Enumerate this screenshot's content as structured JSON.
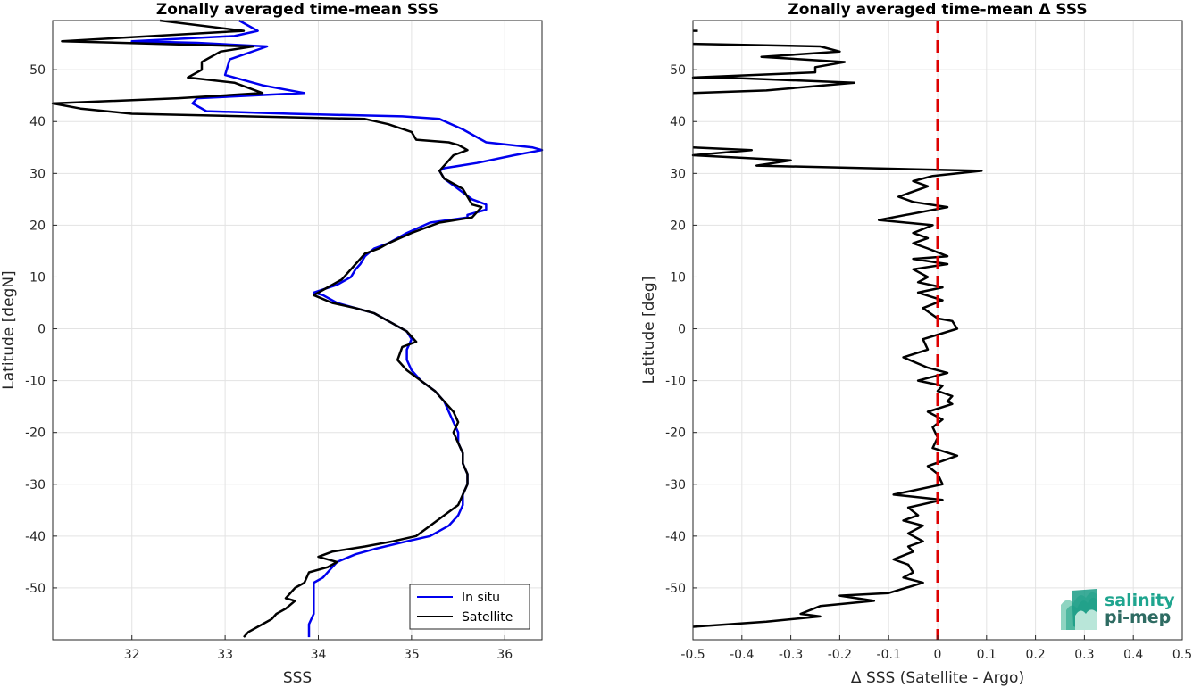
{
  "chart_data": [
    {
      "type": "line",
      "title": "Zonally averaged time-mean SSS",
      "xlabel": "SSS",
      "ylabel": "Latitude [degN]",
      "xlim": [
        31.15,
        36.4
      ],
      "ylim": [
        -60,
        59.5
      ],
      "grid": true,
      "xticks": [
        "32",
        "33",
        "34",
        "35",
        "36"
      ],
      "yticks": [
        "50",
        "40",
        "30",
        "20",
        "10",
        "0",
        "-10",
        "-20",
        "-30",
        "-40",
        "-50"
      ],
      "legend": {
        "placement": "bottom-right",
        "entries": [
          "In situ",
          "Satellite"
        ]
      },
      "series": [
        {
          "name": "In situ",
          "color": "#0000ee",
          "points": [
            [
              33.15,
              59.5
            ],
            [
              33.35,
              57.5
            ],
            [
              33.1,
              56.5
            ],
            [
              32.0,
              55.5
            ],
            [
              32.7,
              55.2
            ],
            [
              33.45,
              54.5
            ],
            [
              33.05,
              52
            ],
            [
              33.0,
              49
            ],
            [
              33.4,
              47
            ],
            [
              33.85,
              45.5
            ],
            [
              32.7,
              44.5
            ],
            [
              32.65,
              43.5
            ],
            [
              32.8,
              42
            ],
            [
              33.7,
              41.5
            ],
            [
              34.9,
              41
            ],
            [
              35.3,
              40.5
            ],
            [
              35.55,
              38.5
            ],
            [
              35.8,
              36
            ],
            [
              36.3,
              35
            ],
            [
              36.4,
              34.5
            ],
            [
              36.1,
              33.5
            ],
            [
              35.7,
              32
            ],
            [
              35.35,
              31
            ],
            [
              35.3,
              30.5
            ],
            [
              35.35,
              29
            ],
            [
              35.5,
              27
            ],
            [
              35.65,
              25
            ],
            [
              35.8,
              24
            ],
            [
              35.8,
              23
            ],
            [
              35.6,
              22
            ],
            [
              35.6,
              21.5
            ],
            [
              35.2,
              20.5
            ],
            [
              34.95,
              18.5
            ],
            [
              34.75,
              16.5
            ],
            [
              34.6,
              15.5
            ],
            [
              34.5,
              14
            ],
            [
              34.45,
              12.5
            ],
            [
              34.4,
              11.5
            ],
            [
              34.35,
              10
            ],
            [
              34.2,
              8.5
            ],
            [
              33.95,
              7
            ],
            [
              34.05,
              6.5
            ],
            [
              34.2,
              5
            ],
            [
              34.4,
              4
            ],
            [
              34.6,
              3
            ],
            [
              34.8,
              1
            ],
            [
              34.95,
              -0.5
            ],
            [
              35.0,
              -2
            ],
            [
              34.95,
              -4
            ],
            [
              34.95,
              -6
            ],
            [
              35.0,
              -8
            ],
            [
              35.1,
              -10
            ],
            [
              35.25,
              -12
            ],
            [
              35.35,
              -14
            ],
            [
              35.4,
              -16
            ],
            [
              35.45,
              -18
            ],
            [
              35.5,
              -20
            ],
            [
              35.5,
              -22
            ],
            [
              35.55,
              -24
            ],
            [
              35.55,
              -26
            ],
            [
              35.6,
              -28
            ],
            [
              35.6,
              -30
            ],
            [
              35.55,
              -32
            ],
            [
              35.55,
              -34
            ],
            [
              35.5,
              -36
            ],
            [
              35.4,
              -38
            ],
            [
              35.2,
              -40
            ],
            [
              34.95,
              -41
            ],
            [
              34.6,
              -42.5
            ],
            [
              34.4,
              -43.5
            ],
            [
              34.2,
              -45
            ],
            [
              34.15,
              -46
            ],
            [
              34.05,
              -48
            ],
            [
              33.95,
              -49
            ],
            [
              33.95,
              -51
            ],
            [
              33.95,
              -53
            ],
            [
              33.95,
              -55
            ],
            [
              33.9,
              -57
            ],
            [
              33.9,
              -59.5
            ]
          ]
        },
        {
          "name": "Satellite",
          "color": "#000000",
          "points": [
            [
              32.3,
              59.5
            ],
            [
              33.2,
              57.5
            ],
            [
              31.25,
              55.5
            ],
            [
              33.3,
              54.5
            ],
            [
              32.95,
              53.5
            ],
            [
              32.75,
              51.5
            ],
            [
              32.75,
              50
            ],
            [
              32.6,
              48.5
            ],
            [
              33.1,
              47.5
            ],
            [
              33.4,
              45.5
            ],
            [
              32.5,
              44.5
            ],
            [
              31.15,
              43.5
            ],
            [
              31.45,
              42.5
            ],
            [
              32.0,
              41.5
            ],
            [
              34.5,
              40.5
            ],
            [
              34.75,
              39.5
            ],
            [
              35.0,
              38
            ],
            [
              35.05,
              36.5
            ],
            [
              35.4,
              36
            ],
            [
              35.5,
              35.5
            ],
            [
              35.6,
              34.5
            ],
            [
              35.45,
              33.5
            ],
            [
              35.4,
              32.5
            ],
            [
              35.3,
              30.5
            ],
            [
              35.35,
              29
            ],
            [
              35.55,
              27
            ],
            [
              35.65,
              24
            ],
            [
              35.75,
              23.5
            ],
            [
              35.65,
              21.5
            ],
            [
              35.3,
              20.5
            ],
            [
              35.0,
              18.5
            ],
            [
              34.75,
              16.5
            ],
            [
              34.65,
              15.5
            ],
            [
              34.5,
              14.5
            ],
            [
              34.4,
              12.5
            ],
            [
              34.35,
              11.5
            ],
            [
              34.25,
              9.5
            ],
            [
              34.1,
              8
            ],
            [
              33.95,
              6.5
            ],
            [
              34.15,
              5
            ],
            [
              34.4,
              4
            ],
            [
              34.6,
              3
            ],
            [
              34.8,
              1
            ],
            [
              34.95,
              -0.5
            ],
            [
              35.05,
              -2.5
            ],
            [
              34.9,
              -3.5
            ],
            [
              34.85,
              -6
            ],
            [
              34.95,
              -8
            ],
            [
              35.1,
              -10
            ],
            [
              35.25,
              -12
            ],
            [
              35.35,
              -14
            ],
            [
              35.45,
              -16
            ],
            [
              35.5,
              -18
            ],
            [
              35.45,
              -20
            ],
            [
              35.5,
              -22
            ],
            [
              35.55,
              -24
            ],
            [
              35.55,
              -26
            ],
            [
              35.6,
              -28
            ],
            [
              35.6,
              -30
            ],
            [
              35.55,
              -32
            ],
            [
              35.5,
              -34
            ],
            [
              35.35,
              -36
            ],
            [
              35.2,
              -38
            ],
            [
              35.05,
              -40
            ],
            [
              34.8,
              -41
            ],
            [
              34.5,
              -42
            ],
            [
              34.15,
              -43
            ],
            [
              34.0,
              -44
            ],
            [
              34.2,
              -45
            ],
            [
              34.1,
              -46
            ],
            [
              33.9,
              -47
            ],
            [
              33.85,
              -49
            ],
            [
              33.75,
              -50
            ],
            [
              33.65,
              -52
            ],
            [
              33.75,
              -52.5
            ],
            [
              33.65,
              -54
            ],
            [
              33.55,
              -55
            ],
            [
              33.5,
              -56
            ],
            [
              33.4,
              -57
            ],
            [
              33.25,
              -58.5
            ],
            [
              33.2,
              -59.5
            ]
          ]
        }
      ]
    },
    {
      "type": "line",
      "title": "Zonally averaged time-mean Δ SSS",
      "xlabel": "Δ SSS (Satellite - Argo)",
      "ylabel": "Latitude [deg]",
      "xlim": [
        -0.5,
        0.5
      ],
      "ylim": [
        -60,
        59.5
      ],
      "grid": true,
      "xticks": [
        "-0.5",
        "-0.4",
        "-0.3",
        "-0.2",
        "-0.1",
        "0",
        "0.1",
        "0.2",
        "0.3",
        "0.4",
        "0.5"
      ],
      "yticks": [
        "50",
        "40",
        "30",
        "20",
        "10",
        "0",
        "-10",
        "-20",
        "-30",
        "-40",
        "-50"
      ],
      "reference_line": {
        "x": 0,
        "color": "#dd0000",
        "style": "dashed"
      },
      "series": [
        {
          "name": "",
          "color": "#000000",
          "segments": [
            [
              [
                -0.5,
                57.5
              ],
              [
                -0.49,
                57.5
              ]
            ],
            [
              [
                -0.5,
                55
              ],
              [
                -0.24,
                54.5
              ],
              [
                -0.2,
                53.5
              ],
              [
                -0.36,
                52.5
              ],
              [
                -0.19,
                51.5
              ],
              [
                -0.25,
                50.5
              ],
              [
                -0.25,
                49.5
              ],
              [
                -0.5,
                48.5
              ],
              [
                -0.44,
                48.5
              ],
              [
                -0.17,
                47.5
              ],
              [
                -0.35,
                46
              ],
              [
                -0.5,
                45.5
              ]
            ],
            [
              [
                -0.5,
                35
              ],
              [
                -0.38,
                34.5
              ],
              [
                -0.5,
                33.5
              ],
              [
                -0.3,
                32.5
              ],
              [
                -0.37,
                31.5
              ],
              [
                0.09,
                30.5
              ],
              [
                -0.01,
                29.5
              ],
              [
                -0.05,
                28.5
              ],
              [
                -0.02,
                27.5
              ],
              [
                -0.08,
                25.5
              ],
              [
                -0.05,
                24.5
              ],
              [
                0.02,
                23.5
              ],
              [
                -0.12,
                21
              ],
              [
                -0.01,
                20
              ],
              [
                -0.05,
                18.5
              ],
              [
                -0.02,
                17.5
              ],
              [
                -0.05,
                16.5
              ],
              [
                -0.02,
                15.5
              ],
              [
                0.02,
                14
              ],
              [
                -0.05,
                13.5
              ],
              [
                0.02,
                12.5
              ],
              [
                -0.05,
                11.5
              ],
              [
                -0.02,
                10
              ],
              [
                -0.04,
                9
              ],
              [
                0.01,
                8
              ],
              [
                -0.04,
                7
              ],
              [
                0.01,
                5.5
              ],
              [
                -0.03,
                4
              ],
              [
                0.0,
                2
              ],
              [
                0.03,
                1.5
              ],
              [
                0.04,
                0
              ],
              [
                -0.03,
                -2
              ],
              [
                -0.02,
                -4
              ],
              [
                -0.07,
                -5.5
              ],
              [
                -0.02,
                -7.5
              ],
              [
                0.02,
                -8.5
              ],
              [
                -0.04,
                -10
              ],
              [
                0.01,
                -11
              ],
              [
                0.0,
                -12
              ],
              [
                0.03,
                -13
              ],
              [
                0.02,
                -14
              ],
              [
                0.03,
                -14.5
              ],
              [
                -0.02,
                -16
              ],
              [
                0.01,
                -17.5
              ],
              [
                -0.01,
                -19
              ],
              [
                0.0,
                -21
              ],
              [
                -0.01,
                -23
              ],
              [
                0.04,
                -24.5
              ],
              [
                -0.02,
                -26.5
              ],
              [
                0.0,
                -28
              ],
              [
                0.01,
                -30
              ],
              [
                -0.09,
                -32
              ],
              [
                0.01,
                -33
              ],
              [
                -0.06,
                -34.5
              ],
              [
                -0.04,
                -36
              ],
              [
                -0.07,
                -37
              ],
              [
                -0.03,
                -38
              ],
              [
                -0.06,
                -39.5
              ],
              [
                -0.03,
                -41
              ],
              [
                -0.06,
                -42
              ],
              [
                -0.05,
                -43
              ],
              [
                -0.09,
                -44.5
              ],
              [
                -0.06,
                -45.5
              ],
              [
                -0.05,
                -47
              ],
              [
                -0.07,
                -48
              ],
              [
                -0.03,
                -49
              ],
              [
                -0.1,
                -51
              ],
              [
                -0.2,
                -51.5
              ],
              [
                -0.13,
                -52.5
              ],
              [
                -0.24,
                -53.5
              ],
              [
                -0.28,
                -55
              ],
              [
                -0.24,
                -55.5
              ],
              [
                -0.35,
                -56.5
              ],
              [
                -0.5,
                -57.5
              ]
            ]
          ]
        }
      ]
    }
  ],
  "logo": {
    "line1": "salinity",
    "line2": "pi-mep"
  }
}
